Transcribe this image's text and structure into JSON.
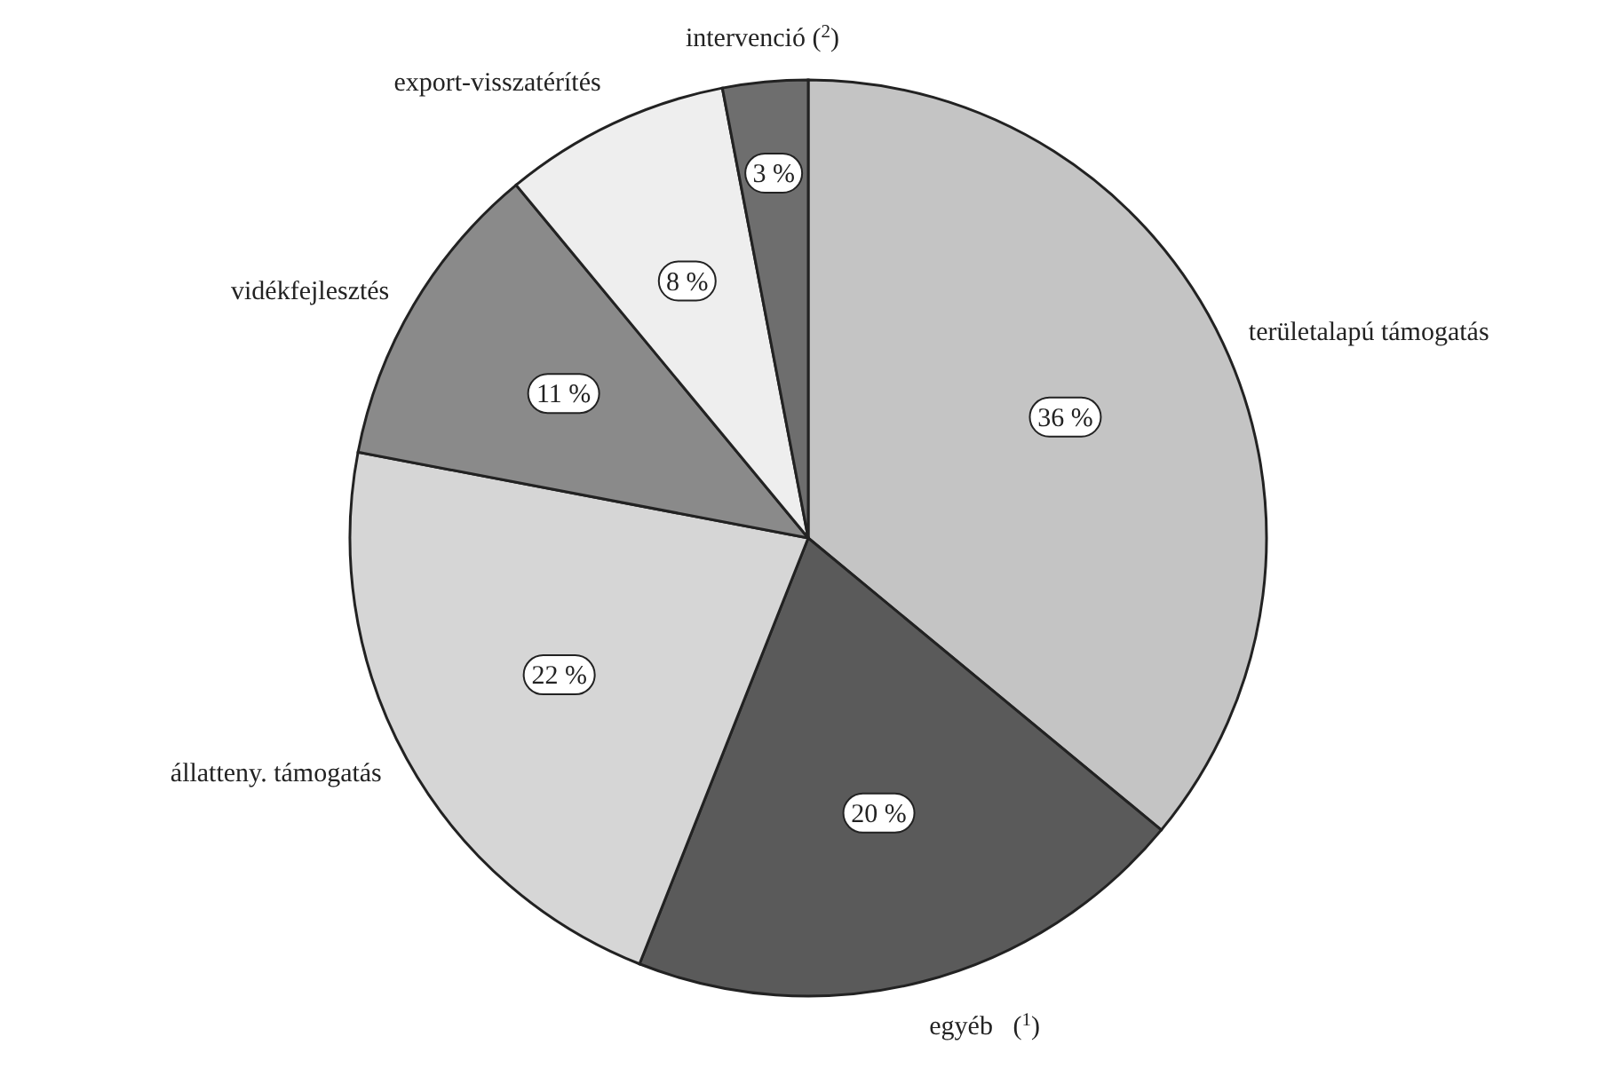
{
  "chart_data": {
    "type": "pie",
    "categories": [
      "területalapú támogatás",
      "egyéb   ($^{1}$)",
      "állatteny. támogatás",
      "vidékfejlesztés",
      "export-visszatérítés",
      "intervenció ($^{2}$)"
    ],
    "values": [
      36,
      20,
      22,
      11,
      8,
      3
    ],
    "colors": [
      "#c4c4c4",
      "#5a5a5a",
      "#d6d6d6",
      "#8a8a8a",
      "#eeeeee",
      "#6e6e6e"
    ],
    "value_labels": [
      "36 %",
      "20 %",
      "22 %",
      "11 %",
      "8 %",
      "3 %"
    ]
  }
}
